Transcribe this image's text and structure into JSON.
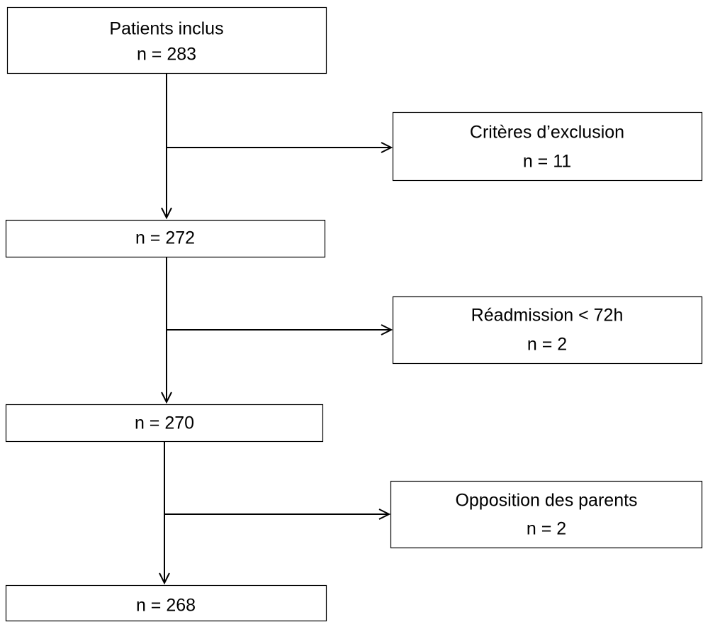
{
  "nodes": [
    {
      "lines": [
        "Patients inclus",
        "n = 283"
      ]
    },
    {
      "lines": [
        "Critères d’exclusion",
        "n = 11"
      ]
    },
    {
      "lines": [
        "n = 272"
      ]
    },
    {
      "lines": [
        "Réadmission < 72h",
        "n = 2"
      ]
    },
    {
      "lines": [
        "n = 270"
      ]
    },
    {
      "lines": [
        "Opposition des parents",
        "n = 2"
      ]
    },
    {
      "lines": [
        "n = 268"
      ]
    }
  ]
}
